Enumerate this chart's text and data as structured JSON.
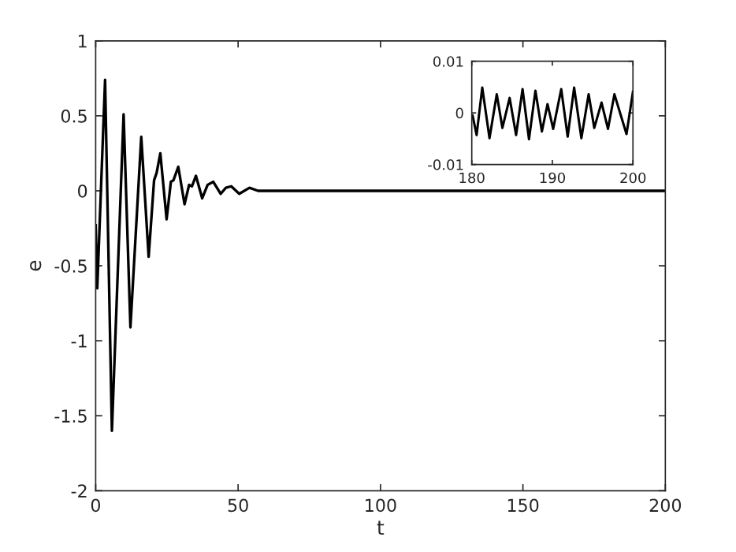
{
  "chart_data": [
    {
      "type": "line",
      "xlabel": "t",
      "ylabel": "e",
      "xlim": [
        0,
        200
      ],
      "ylim": [
        -2,
        1
      ],
      "xticks": [
        0,
        50,
        100,
        150,
        200
      ],
      "yticks": [
        -2,
        -1.5,
        -1,
        -0.5,
        0,
        0.5,
        1
      ],
      "series": [
        {
          "color": "#000000",
          "x": [
            0,
            0.55,
            3.3,
            5.7,
            9.8,
            12.2,
            16,
            18.6,
            20.5,
            21.4,
            22.7,
            24.9,
            26.4,
            27.3,
            29,
            31.2,
            32.8,
            33.8,
            35.2,
            37.4,
            39.3,
            41.3,
            43.9,
            45.7,
            47.6,
            50.4,
            54,
            57,
            60,
            80,
            100,
            120,
            140,
            160,
            180,
            200
          ],
          "values": [
            -0.23,
            -0.65,
            0.74,
            -1.6,
            0.51,
            -0.91,
            0.36,
            -0.44,
            0.07,
            0.12,
            0.25,
            -0.19,
            0.06,
            0.07,
            0.16,
            -0.09,
            0.04,
            0.03,
            0.1,
            -0.05,
            0.04,
            0.06,
            -0.02,
            0.02,
            0.03,
            -0.02,
            0.02,
            0,
            0,
            0,
            0,
            0,
            0,
            0,
            0,
            0
          ]
        }
      ]
    },
    {
      "type": "line",
      "xlim": [
        180,
        200
      ],
      "ylim": [
        -0.01,
        0.01
      ],
      "xticks": [
        180,
        190,
        200
      ],
      "yticks": [
        -0.01,
        0,
        0.01
      ],
      "series": [
        {
          "color": "#000000",
          "x": [
            180.1,
            180.6,
            181.3,
            182.2,
            183.1,
            183.8,
            184.7,
            185.5,
            186.3,
            187.1,
            187.9,
            188.7,
            189.4,
            190.1,
            191.1,
            191.9,
            192.7,
            193.6,
            194.5,
            195.2,
            196.1,
            196.9,
            197.7,
            199.2,
            200
          ],
          "values": [
            -0.0005,
            -0.0043,
            0.0049,
            -0.0049,
            0.0036,
            -0.0029,
            0.0029,
            -0.0043,
            0.0046,
            -0.0051,
            0.0043,
            -0.0036,
            0.0017,
            -0.0031,
            0.0046,
            -0.0046,
            0.0049,
            -0.0049,
            0.0036,
            -0.0029,
            0.002,
            -0.0031,
            0.0036,
            -0.0041,
            0.0041
          ]
        }
      ]
    }
  ]
}
